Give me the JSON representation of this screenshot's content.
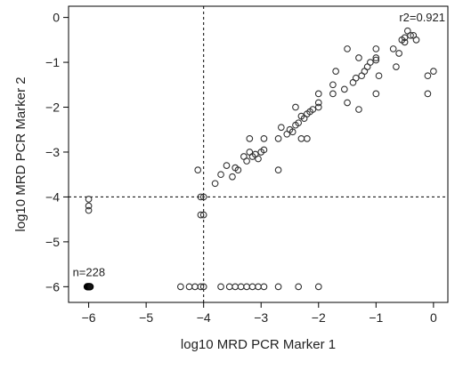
{
  "chart_data": {
    "type": "scatter",
    "xlabel": "log10 MRD PCR Marker 1",
    "ylabel": "log10 MRD PCR Marker 2",
    "xlim": [
      -6.35,
      0.25
    ],
    "ylim": [
      -6.35,
      0.25
    ],
    "x_ticks": [
      -6,
      -5,
      -4,
      -3,
      -2,
      -1,
      0
    ],
    "y_ticks": [
      0,
      -1,
      -2,
      -3,
      -4,
      -5,
      -6
    ],
    "reference_lines": {
      "x": -4,
      "y": -4,
      "style": "dashed"
    },
    "annotations": {
      "r2": "r2=0.921",
      "n": "n=228"
    },
    "grid": false,
    "marker": "open-circle",
    "points": [
      [
        -6.0,
        -4.05
      ],
      [
        -6.0,
        -4.2
      ],
      [
        -6.0,
        -4.3
      ],
      [
        -4.1,
        -3.4
      ],
      [
        -4.05,
        -4.0
      ],
      [
        -4.0,
        -4.0
      ],
      [
        -4.05,
        -4.4
      ],
      [
        -4.0,
        -4.4
      ],
      [
        -3.8,
        -3.7
      ],
      [
        -3.7,
        -3.5
      ],
      [
        -3.6,
        -3.3
      ],
      [
        -3.5,
        -3.55
      ],
      [
        -3.45,
        -3.35
      ],
      [
        -3.4,
        -3.4
      ],
      [
        -3.3,
        -3.1
      ],
      [
        -3.25,
        -3.2
      ],
      [
        -3.2,
        -3.0
      ],
      [
        -3.15,
        -3.1
      ],
      [
        -3.1,
        -3.05
      ],
      [
        -3.05,
        -3.15
      ],
      [
        -3.0,
        -3.0
      ],
      [
        -2.95,
        -2.95
      ],
      [
        -3.2,
        -2.7
      ],
      [
        -2.95,
        -2.7
      ],
      [
        -2.7,
        -2.7
      ],
      [
        -2.65,
        -2.45
      ],
      [
        -2.55,
        -2.6
      ],
      [
        -2.5,
        -2.5
      ],
      [
        -2.45,
        -2.55
      ],
      [
        -2.4,
        -2.4
      ],
      [
        -2.35,
        -2.35
      ],
      [
        -2.3,
        -2.2
      ],
      [
        -2.25,
        -2.25
      ],
      [
        -2.2,
        -2.15
      ],
      [
        -2.15,
        -2.1
      ],
      [
        -2.1,
        -2.05
      ],
      [
        -2.0,
        -2.0
      ],
      [
        -2.0,
        -1.9
      ],
      [
        -2.0,
        -1.7
      ],
      [
        -2.3,
        -2.7
      ],
      [
        -2.2,
        -2.7
      ],
      [
        -2.7,
        -3.4
      ],
      [
        -2.4,
        -2.0
      ],
      [
        -1.75,
        -1.7
      ],
      [
        -1.75,
        -1.5
      ],
      [
        -1.7,
        -1.2
      ],
      [
        -1.55,
        -1.6
      ],
      [
        -1.5,
        -1.9
      ],
      [
        -1.4,
        -1.45
      ],
      [
        -1.35,
        -1.35
      ],
      [
        -1.3,
        -2.05
      ],
      [
        -1.25,
        -1.3
      ],
      [
        -1.2,
        -1.2
      ],
      [
        -1.15,
        -1.1
      ],
      [
        -1.1,
        -1.0
      ],
      [
        -1.0,
        -0.95
      ],
      [
        -1.0,
        -0.9
      ],
      [
        -1.0,
        -0.7
      ],
      [
        -1.0,
        -1.7
      ],
      [
        -0.95,
        -1.3
      ],
      [
        -0.7,
        -0.7
      ],
      [
        -0.65,
        -1.1
      ],
      [
        -0.6,
        -0.8
      ],
      [
        -0.55,
        -0.5
      ],
      [
        -0.5,
        -0.55
      ],
      [
        -0.5,
        -0.45
      ],
      [
        -0.45,
        -0.3
      ],
      [
        -0.4,
        -0.4
      ],
      [
        -0.35,
        -0.4
      ],
      [
        -0.3,
        -0.5
      ],
      [
        -1.5,
        -0.7
      ],
      [
        -1.3,
        -0.9
      ],
      [
        -0.1,
        -1.3
      ],
      [
        -0.1,
        -1.7
      ],
      [
        0.0,
        -1.2
      ],
      [
        -4.4,
        -6.0
      ],
      [
        -4.25,
        -6.0
      ],
      [
        -4.15,
        -6.0
      ],
      [
        -4.05,
        -6.0
      ],
      [
        -4.0,
        -6.0
      ],
      [
        -3.7,
        -6.0
      ],
      [
        -3.55,
        -6.0
      ],
      [
        -3.45,
        -6.0
      ],
      [
        -3.35,
        -6.0
      ],
      [
        -3.25,
        -6.0
      ],
      [
        -3.15,
        -6.0
      ],
      [
        -3.05,
        -6.0
      ],
      [
        -2.95,
        -6.0
      ],
      [
        -2.7,
        -6.0
      ],
      [
        -2.35,
        -6.0
      ],
      [
        -2.0,
        -6.0
      ]
    ],
    "cluster": {
      "x": -6.0,
      "y": -6.0,
      "label": "n=228"
    }
  }
}
